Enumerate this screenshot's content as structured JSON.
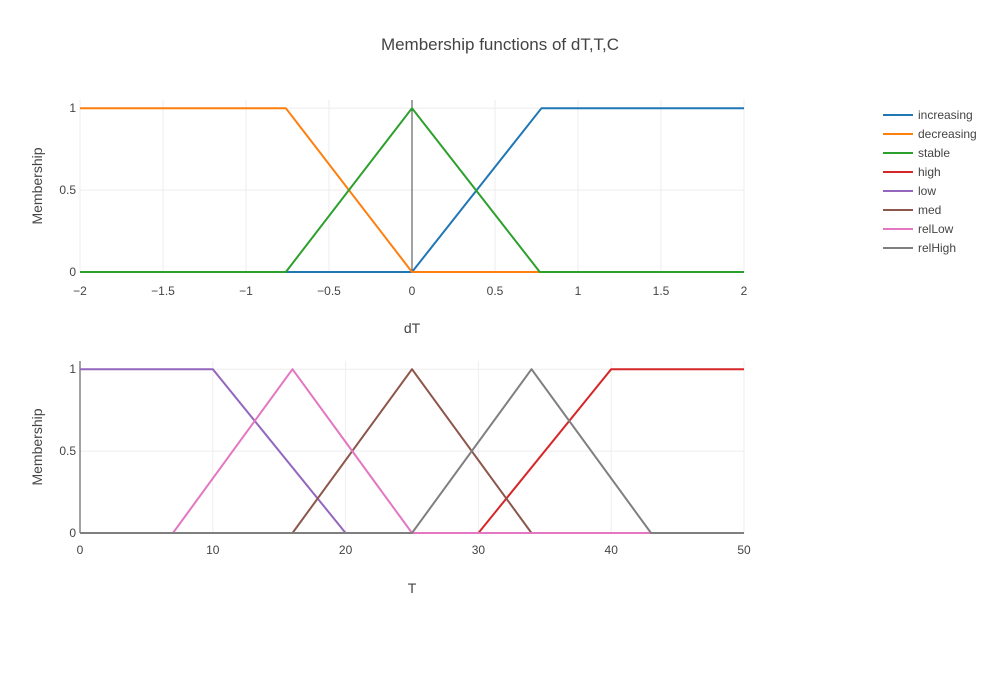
{
  "chart_data": {
    "type": "line",
    "title": "Membership functions of dT,T,C",
    "legend": {
      "placement": "right",
      "entries": [
        "increasing",
        "decreasing",
        "stable",
        "high",
        "low",
        "med",
        "relLow",
        "relHigh"
      ]
    },
    "subplots": [
      {
        "xlabel": "dT",
        "ylabel": "Membership",
        "xlim": [
          -2,
          2
        ],
        "ylim": [
          0,
          1.05
        ],
        "xticks": [
          "−2",
          "−1.5",
          "−1",
          "−0.5",
          "0",
          "0.5",
          "1",
          "1.5",
          "2"
        ],
        "xtick_values": [
          -2,
          -1.5,
          -1,
          -0.5,
          0,
          0.5,
          1,
          1.5,
          2
        ],
        "yticks": [
          "0",
          "0.5",
          "1"
        ],
        "ytick_values": [
          0,
          0.5,
          1
        ],
        "grid": true,
        "series": [
          {
            "name": "increasing",
            "color": "#1f77b4",
            "x": [
              -2,
              0,
              0.78,
              2
            ],
            "y": [
              0,
              0,
              1,
              1
            ]
          },
          {
            "name": "decreasing",
            "color": "#ff7f0e",
            "x": [
              -2,
              -0.76,
              0,
              2
            ],
            "y": [
              1,
              1,
              0,
              0
            ]
          },
          {
            "name": "stable",
            "color": "#2ca02c",
            "x": [
              -2,
              -0.76,
              0,
              0.77,
              2
            ],
            "y": [
              0,
              0,
              1,
              0,
              0
            ]
          }
        ]
      },
      {
        "xlabel": "T",
        "ylabel": "Membership",
        "xlim": [
          0,
          50
        ],
        "ylim": [
          0,
          1.05
        ],
        "xticks": [
          "0",
          "10",
          "20",
          "30",
          "40",
          "50"
        ],
        "xtick_values": [
          0,
          10,
          20,
          30,
          40,
          50
        ],
        "yticks": [
          "0",
          "0.5",
          "1"
        ],
        "ytick_values": [
          0,
          0.5,
          1
        ],
        "grid": true,
        "series": [
          {
            "name": "high",
            "color": "#d62728",
            "x": [
              0,
              30,
              40,
              50
            ],
            "y": [
              0,
              0,
              1,
              1
            ]
          },
          {
            "name": "low",
            "color": "#9467bd",
            "x": [
              0,
              10,
              20,
              50
            ],
            "y": [
              1,
              1,
              0,
              0
            ]
          },
          {
            "name": "med",
            "color": "#8c564b",
            "x": [
              0,
              16,
              25,
              34,
              50
            ],
            "y": [
              0,
              0,
              1,
              0,
              0
            ]
          },
          {
            "name": "relLow",
            "color": "#e377c2",
            "x": [
              0,
              7,
              16,
              25,
              50
            ],
            "y": [
              0,
              0,
              1,
              0,
              0
            ]
          },
          {
            "name": "relHigh",
            "color": "#7f7f7f",
            "x": [
              0,
              25,
              34,
              43,
              50
            ],
            "y": [
              0,
              0,
              1,
              0,
              0
            ]
          }
        ]
      }
    ]
  }
}
